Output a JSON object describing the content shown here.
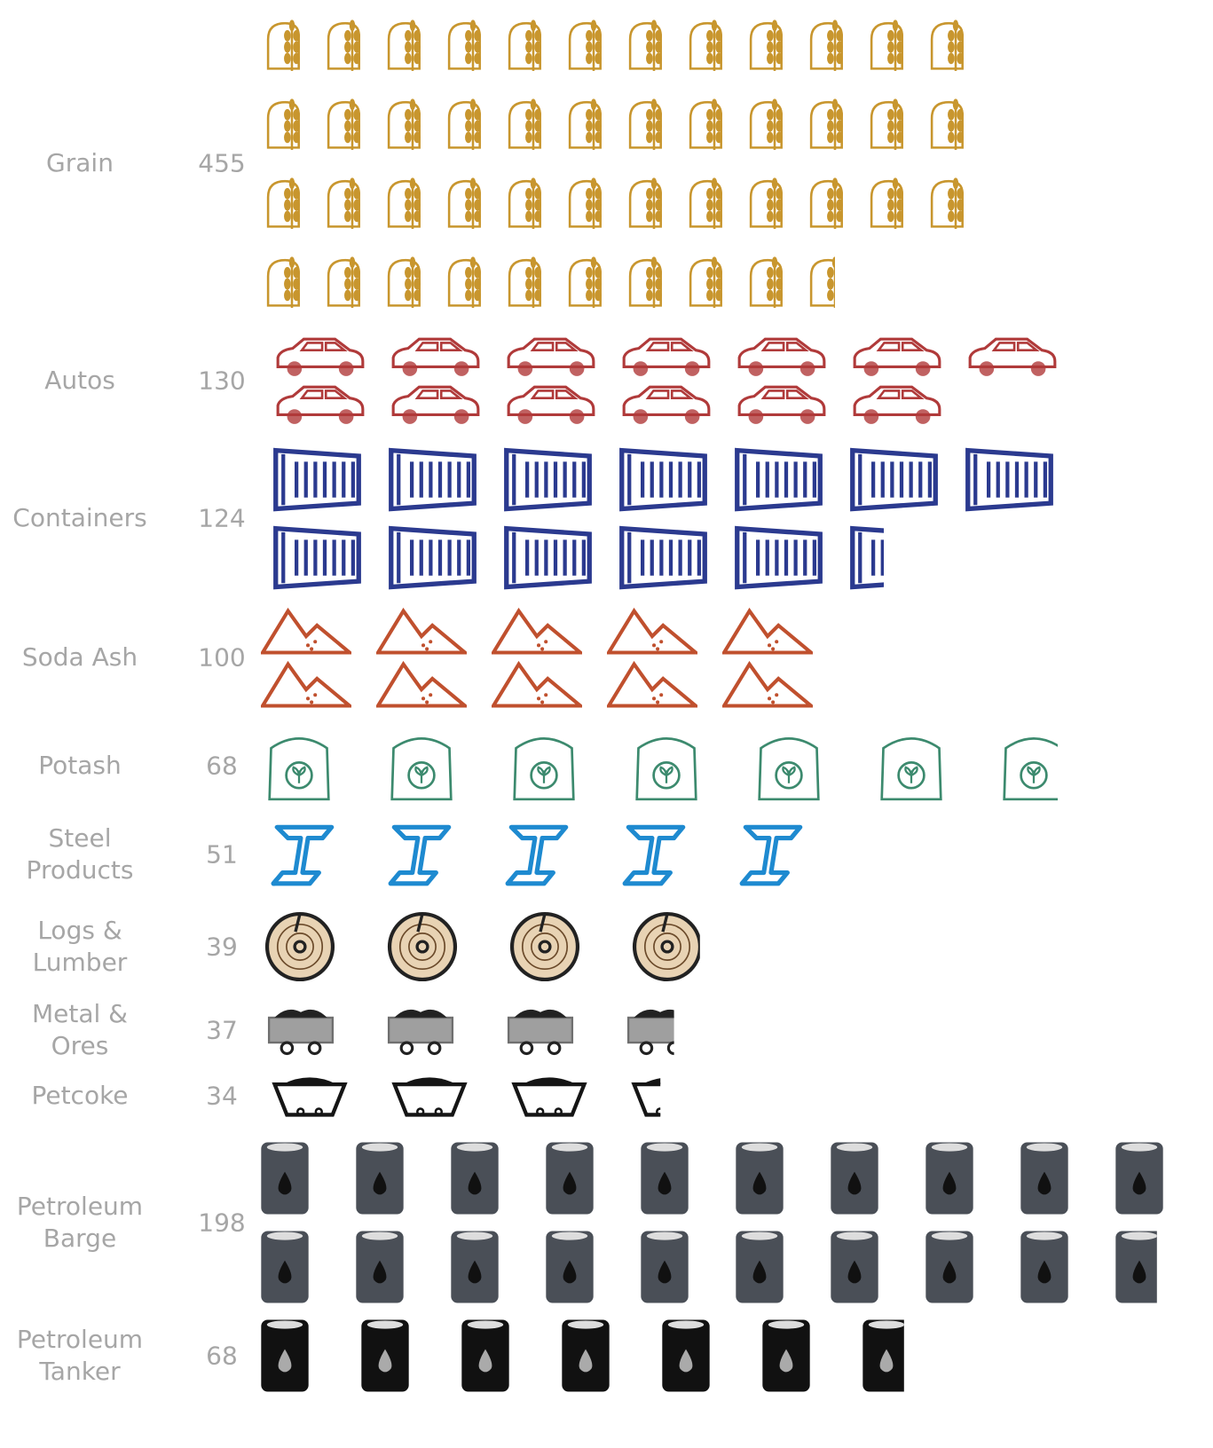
{
  "chart_data": {
    "type": "pictogram",
    "unit": 10,
    "categories": [
      "Grain",
      "Autos",
      "Containers",
      "Soda Ash",
      "Potash",
      "Steel Products",
      "Logs & Lumber",
      "Metal & Ores",
      "Petcoke",
      "Petroleum Barge",
      "Petroleum Tanker"
    ],
    "values": [
      455,
      130,
      124,
      100,
      68,
      51,
      39,
      37,
      34,
      198,
      68
    ],
    "colors": [
      "#c8962e",
      "#b03a3a",
      "#2b3a8f",
      "#c0502e",
      "#3c8a6e",
      "#1e8ad0",
      "#6b4a2a",
      "#777777",
      "#151515",
      "#4a4f57",
      "#111111"
    ]
  }
}
